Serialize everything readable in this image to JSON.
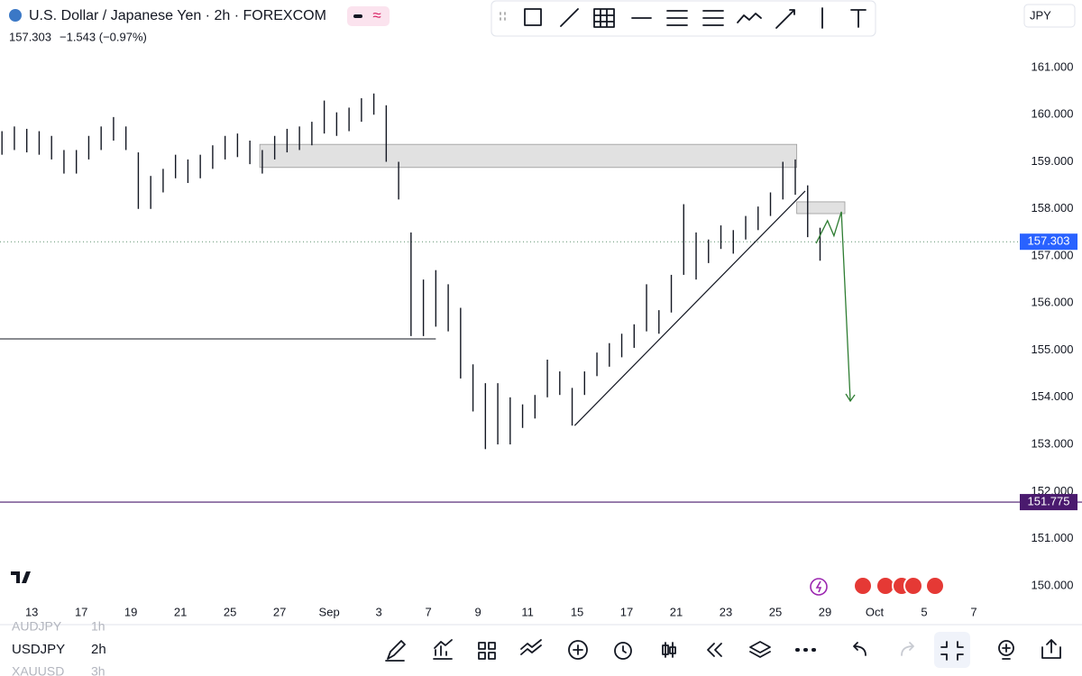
{
  "header": {
    "symbol_title": "U.S. Dollar / Japanese Yen · 2h · FOREXCOM",
    "change": "−1.543 (−0.97%)",
    "currency_button": "JPY"
  },
  "watchlist": [
    {
      "symbol": "AUDJPY",
      "interval": "1h"
    },
    {
      "symbol": "USDJPY",
      "interval": "2h"
    },
    {
      "symbol": "XAUUSD",
      "interval": "3h"
    }
  ],
  "chart_data": {
    "type": "ohlc-bars",
    "ylim": [
      149.71,
      162.435
    ],
    "yticks": [
      {
        "value": 150,
        "label": "150.000"
      },
      {
        "value": 151,
        "label": "151.000"
      },
      {
        "value": 152,
        "label": "152.000"
      },
      {
        "value": 153,
        "label": "153.000"
      },
      {
        "value": 154,
        "label": "154.000"
      },
      {
        "value": 155,
        "label": "155.000"
      },
      {
        "value": 156,
        "label": "156.000"
      },
      {
        "value": 157,
        "label": "157.000"
      },
      {
        "value": 158,
        "label": "158.000"
      },
      {
        "value": 159,
        "label": "159.000"
      },
      {
        "value": 160,
        "label": "160.000"
      },
      {
        "value": 161,
        "label": "161.000"
      }
    ],
    "xlim": [
      -0.64,
      19.91
    ],
    "xticks": [
      {
        "value": 0,
        "label": "13"
      },
      {
        "value": 1,
        "label": "17"
      },
      {
        "value": 2,
        "label": "19"
      },
      {
        "value": 3,
        "label": "21"
      },
      {
        "value": 4,
        "label": "25"
      },
      {
        "value": 5,
        "label": "27"
      },
      {
        "value": 6,
        "label": "Sep"
      },
      {
        "value": 7,
        "label": "3"
      },
      {
        "value": 8,
        "label": "7"
      },
      {
        "value": 9,
        "label": "9"
      },
      {
        "value": 10,
        "label": "11"
      },
      {
        "value": 11,
        "label": "15"
      },
      {
        "value": 12,
        "label": "17"
      },
      {
        "value": 13,
        "label": "21"
      },
      {
        "value": 14,
        "label": "23"
      },
      {
        "value": 15,
        "label": "25"
      },
      {
        "value": 16,
        "label": "29"
      },
      {
        "value": 17,
        "label": "Oct"
      },
      {
        "value": 18,
        "label": "5"
      },
      {
        "value": 19,
        "label": "7"
      }
    ],
    "x": [
      -0.6,
      -0.35,
      -0.1,
      0.15,
      0.4,
      0.65,
      0.9,
      1.15,
      1.4,
      1.65,
      1.9,
      2.15,
      2.4,
      2.65,
      2.9,
      3.15,
      3.4,
      3.65,
      3.9,
      4.15,
      4.4,
      4.65,
      4.9,
      5.15,
      5.4,
      5.65,
      5.9,
      6.15,
      6.4,
      6.65,
      6.9,
      7.15,
      7.4,
      7.65,
      7.9,
      8.15,
      8.4,
      8.65,
      8.9,
      9.15,
      9.4,
      9.65,
      9.9,
      10.15,
      10.4,
      10.65,
      10.9,
      11.15,
      11.4,
      11.65,
      11.9,
      12.15,
      12.4,
      12.65,
      12.9,
      13.15,
      13.4,
      13.65,
      13.9,
      14.15,
      14.4,
      14.65,
      14.9,
      15.15,
      15.4,
      15.65,
      15.9
    ],
    "high": [
      159.65,
      159.75,
      159.7,
      159.65,
      159.55,
      159.25,
      159.25,
      159.55,
      159.75,
      159.95,
      159.75,
      159.2,
      158.7,
      158.85,
      159.15,
      159.05,
      159.15,
      159.35,
      159.55,
      159.6,
      159.45,
      159.25,
      159.55,
      159.7,
      159.75,
      159.85,
      160.3,
      160.05,
      160.15,
      160.35,
      160.45,
      160.2,
      159.0,
      157.5,
      156.5,
      156.7,
      156.4,
      155.9,
      154.7,
      154.3,
      154.3,
      154.0,
      153.85,
      154.05,
      154.8,
      154.55,
      154.2,
      154.55,
      154.95,
      155.15,
      155.35,
      155.55,
      156.4,
      155.85,
      156.6,
      158.1,
      157.5,
      157.35,
      157.65,
      157.55,
      157.85,
      158.05,
      158.35,
      159.0,
      159.05,
      158.5,
      157.6
    ],
    "low": [
      159.15,
      159.25,
      159.2,
      159.15,
      159.05,
      158.75,
      158.75,
      159.05,
      159.25,
      159.45,
      159.25,
      158.0,
      158.0,
      158.35,
      158.65,
      158.55,
      158.65,
      158.85,
      159.05,
      159.1,
      158.95,
      158.75,
      159.05,
      159.2,
      159.25,
      159.35,
      159.6,
      159.55,
      159.65,
      159.85,
      160.0,
      159.0,
      158.2,
      155.3,
      155.3,
      155.5,
      155.4,
      154.4,
      153.7,
      152.9,
      153.0,
      153.0,
      153.35,
      153.55,
      154.0,
      154.05,
      153.4,
      154.05,
      154.45,
      154.65,
      154.85,
      155.05,
      155.4,
      155.35,
      155.8,
      156.6,
      156.5,
      156.85,
      157.15,
      157.05,
      157.35,
      157.55,
      157.85,
      158.2,
      158.3,
      157.4,
      156.9
    ],
    "last_price": 157.303,
    "level_line": {
      "value": 151.775,
      "color": "#4a1a6e"
    },
    "horizontal_ray": {
      "value": 155.24,
      "x_end": 8.15
    },
    "zones": [
      {
        "x": [
          4.6,
          15.43
        ],
        "y": [
          158.88,
          159.37
        ]
      },
      {
        "x": [
          15.43,
          16.4
        ],
        "y": [
          157.9,
          158.15
        ]
      }
    ],
    "trendline": {
      "x": [
        10.95,
        15.6
      ],
      "y": [
        153.4,
        158.38
      ]
    },
    "projection": {
      "x": [
        15.82,
        16.05,
        16.18,
        16.33,
        16.51
      ],
      "y": [
        157.27,
        157.75,
        157.43,
        157.94,
        153.92
      ],
      "color": "#2e7d32"
    }
  }
}
